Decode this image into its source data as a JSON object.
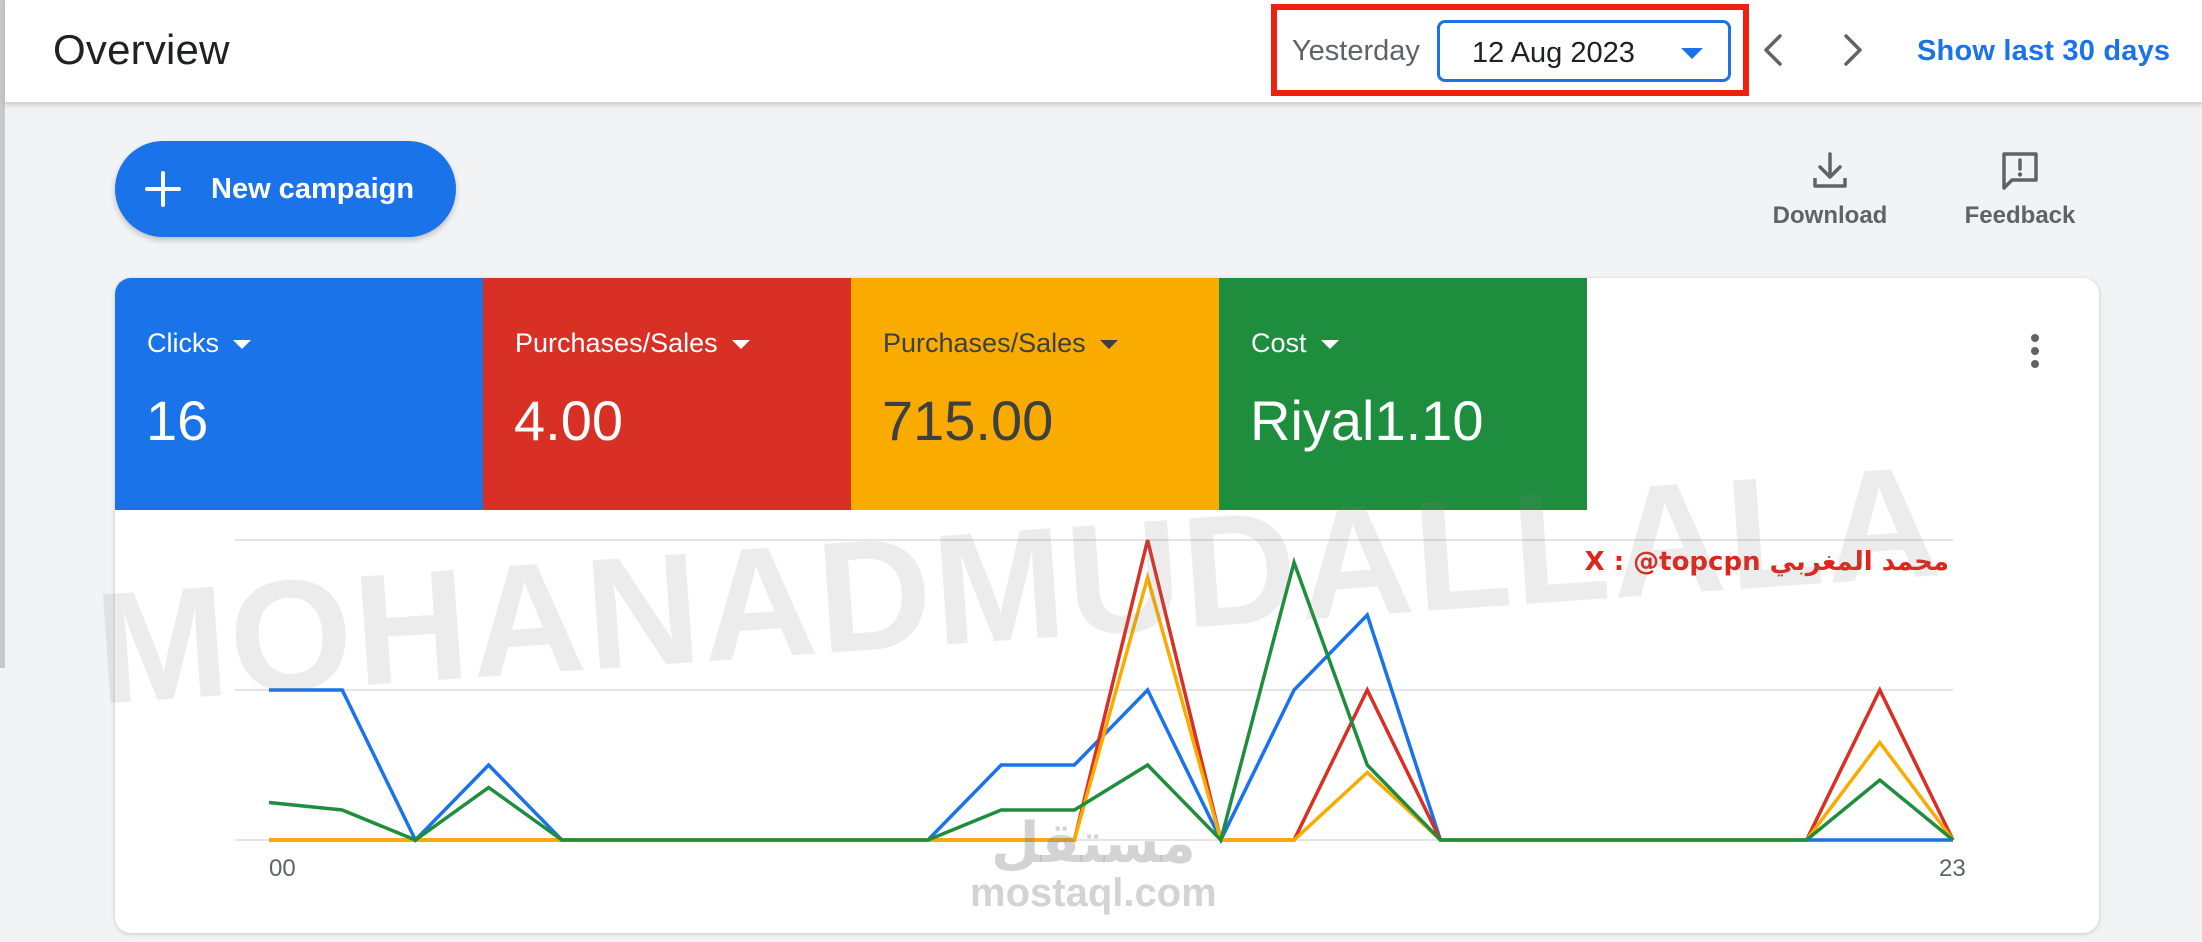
{
  "header": {
    "title": "Overview",
    "date_preset": "Yesterday",
    "date_value": "12 Aug 2023",
    "show_last_label": "Show last 30 days"
  },
  "toolbar": {
    "new_campaign_label": "New campaign",
    "download_label": "Download",
    "feedback_label": "Feedback"
  },
  "metrics": [
    {
      "label": "Clicks",
      "value": "16",
      "color": "#1a73e8"
    },
    {
      "label": "Purchases/Sales",
      "value": "4.00",
      "color": "#d93025"
    },
    {
      "label": "Purchases/Sales",
      "value": "715.00",
      "color": "#f9ab00"
    },
    {
      "label": "Cost",
      "value": "Riyal1.10",
      "color": "#1e8e3e"
    }
  ],
  "overlay": {
    "credit": "X : @topcpn محمد المغربي",
    "watermark": "MOHANADMUDALLALA",
    "site_ar": "مستقل",
    "site_en": "mostaql.com"
  },
  "chart_data": {
    "type": "line",
    "x": [
      0,
      1,
      2,
      3,
      4,
      5,
      6,
      7,
      8,
      9,
      10,
      11,
      12,
      13,
      14,
      15,
      16,
      17,
      18,
      19,
      20,
      21,
      22,
      23
    ],
    "x_tick_labels": [
      "00",
      "23"
    ],
    "ylim": [
      0,
      4
    ],
    "grid": true,
    "series": [
      {
        "color": "#1a73e8",
        "values": [
          2,
          2,
          0,
          1,
          0,
          0,
          0,
          0,
          0,
          0,
          1,
          1,
          2,
          0,
          2,
          3,
          0,
          0,
          0,
          0,
          0,
          0,
          0,
          0
        ]
      },
      {
        "color": "#d93025",
        "values": [
          0,
          0,
          0,
          0,
          0,
          0,
          0,
          0,
          0,
          0,
          0,
          0,
          4,
          0,
          0,
          2,
          0,
          0,
          0,
          0,
          0,
          0,
          2,
          0
        ]
      },
      {
        "color": "#f9ab00",
        "values": [
          0,
          0,
          0,
          0,
          0,
          0,
          0,
          0,
          0,
          0,
          0,
          0,
          3.5,
          0,
          0,
          0.9,
          0,
          0,
          0,
          0,
          0,
          0,
          1.3,
          0
        ]
      },
      {
        "color": "#1e8e3e",
        "values": [
          0.5,
          0.4,
          0,
          0.7,
          0,
          0,
          0,
          0,
          0,
          0,
          0.4,
          0.4,
          1,
          0,
          3.7,
          1,
          0,
          0,
          0,
          0,
          0,
          0,
          0.8,
          0
        ]
      }
    ]
  }
}
